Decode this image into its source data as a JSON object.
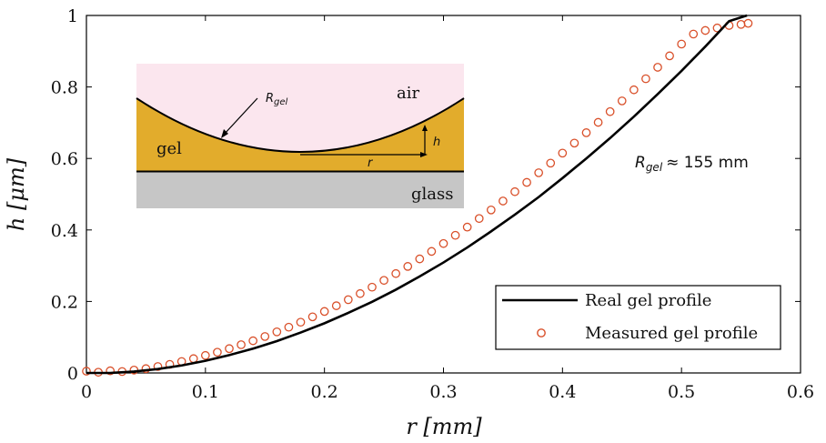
{
  "chart_data": {
    "type": "line",
    "xlabel": "r [mm]",
    "ylabel": "h [μm]",
    "xlim": [
      0,
      0.6
    ],
    "ylim": [
      0,
      1
    ],
    "xticks": [
      "0",
      "0.1",
      "0.2",
      "0.3",
      "0.4",
      "0.5",
      "0.6"
    ],
    "yticks": [
      "0",
      "0.2",
      "0.4",
      "0.6",
      "0.8",
      "1"
    ],
    "grid": false,
    "legend_position": "bottom-right",
    "series": [
      {
        "name": "Real gel profile",
        "style": "line",
        "color": "#000000",
        "x": [
          0.0,
          0.02,
          0.04,
          0.06,
          0.08,
          0.1,
          0.12,
          0.14,
          0.16,
          0.18,
          0.2,
          0.22,
          0.24,
          0.26,
          0.28,
          0.3,
          0.32,
          0.34,
          0.36,
          0.38,
          0.4,
          0.42,
          0.44,
          0.46,
          0.48,
          0.5,
          0.52,
          0.54,
          0.555
        ],
        "y": [
          0.0,
          0.0,
          0.004,
          0.011,
          0.021,
          0.034,
          0.05,
          0.068,
          0.089,
          0.113,
          0.139,
          0.168,
          0.199,
          0.233,
          0.27,
          0.309,
          0.351,
          0.396,
          0.443,
          0.492,
          0.545,
          0.6,
          0.657,
          0.717,
          0.78,
          0.845,
          0.913,
          0.984,
          1.0
        ]
      },
      {
        "name": "Measured gel profile",
        "style": "markers",
        "color": "#d9502a",
        "x": [
          0.0,
          0.01,
          0.02,
          0.03,
          0.04,
          0.05,
          0.06,
          0.07,
          0.08,
          0.09,
          0.1,
          0.11,
          0.12,
          0.13,
          0.14,
          0.15,
          0.16,
          0.17,
          0.18,
          0.19,
          0.2,
          0.21,
          0.22,
          0.23,
          0.24,
          0.25,
          0.26,
          0.27,
          0.28,
          0.29,
          0.3,
          0.31,
          0.32,
          0.33,
          0.34,
          0.35,
          0.36,
          0.37,
          0.38,
          0.39,
          0.4,
          0.41,
          0.42,
          0.43,
          0.44,
          0.45,
          0.46,
          0.47,
          0.48,
          0.49,
          0.5,
          0.51,
          0.52,
          0.53,
          0.54,
          0.55,
          0.556
        ],
        "y": [
          0.005,
          0.002,
          0.006,
          0.004,
          0.008,
          0.012,
          0.018,
          0.024,
          0.032,
          0.04,
          0.049,
          0.058,
          0.068,
          0.079,
          0.09,
          0.102,
          0.115,
          0.128,
          0.142,
          0.157,
          0.172,
          0.188,
          0.205,
          0.222,
          0.24,
          0.259,
          0.278,
          0.298,
          0.319,
          0.34,
          0.362,
          0.385,
          0.408,
          0.432,
          0.456,
          0.481,
          0.507,
          0.533,
          0.56,
          0.587,
          0.615,
          0.643,
          0.672,
          0.701,
          0.731,
          0.761,
          0.792,
          0.823,
          0.855,
          0.887,
          0.92,
          0.948,
          0.958,
          0.965,
          0.972,
          0.975,
          0.978
        ]
      }
    ],
    "annotations": {
      "radius_value": "≈ 155 mm",
      "radius_symbol": "R",
      "radius_sub": "gel"
    }
  },
  "inset": {
    "air_label": "air",
    "gel_label": "gel",
    "glass_label": "glass",
    "radius_symbol": "R",
    "radius_sub": "gel",
    "h_label": "h",
    "r_label": "r",
    "colors": {
      "air": "#fbe6ee",
      "gel": "#e2ac2c",
      "glass": "#c6c6c6"
    }
  }
}
